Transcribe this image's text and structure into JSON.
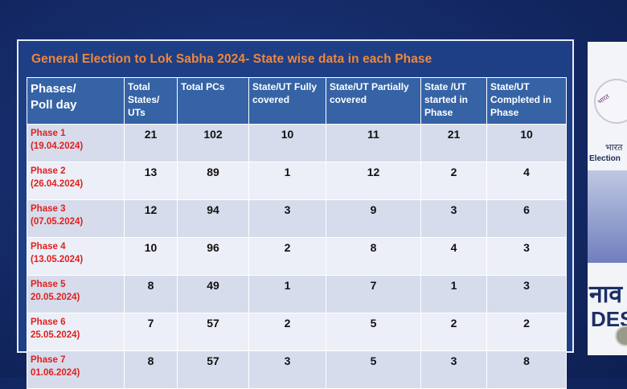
{
  "title": "General Election to Lok Sabha 2024- State wise data in each Phase",
  "headers": {
    "phase": [
      "Phases/",
      "Poll day"
    ],
    "total_states": [
      "Total",
      "States/",
      "UTs"
    ],
    "total_pcs": [
      "Total PCs"
    ],
    "fully": [
      "State/UT Fully",
      "covered"
    ],
    "partially": [
      "State/UT Partially",
      "covered"
    ],
    "started": [
      "State /UT",
      "started in",
      "Phase"
    ],
    "completed": [
      "State/UT",
      "Completed in",
      "Phase"
    ]
  },
  "rows": [
    {
      "phase": "Phase 1",
      "date": "(19.04.2024)",
      "states": "21",
      "pcs": "102",
      "fully": "10",
      "partially": "11",
      "started": "21",
      "completed": "10"
    },
    {
      "phase": "Phase 2",
      "date": "(26.04.2024)",
      "states": "13",
      "pcs": "89",
      "fully": "1",
      "partially": "12",
      "started": "2",
      "completed": "4"
    },
    {
      "phase": "Phase 3",
      "date": "(07.05.2024)",
      "states": "12",
      "pcs": "94",
      "fully": "3",
      "partially": "9",
      "started": "3",
      "completed": "6"
    },
    {
      "phase": "Phase 4",
      "date": "(13.05.2024)",
      "states": "10",
      "pcs": "96",
      "fully": "2",
      "partially": "8",
      "started": "4",
      "completed": "3"
    },
    {
      "phase": "Phase 5",
      "date": "20.05.2024)",
      "states": "8",
      "pcs": "49",
      "fully": "1",
      "partially": "7",
      "started": "1",
      "completed": "3"
    },
    {
      "phase": "Phase 6",
      "date": "25.05.2024)",
      "states": "7",
      "pcs": "57",
      "fully": "2",
      "partially": "5",
      "started": "2",
      "completed": "2"
    },
    {
      "phase": "Phase 7",
      "date": "01.06.2024)",
      "states": "8",
      "pcs": "57",
      "fully": "3",
      "partially": "5",
      "started": "3",
      "completed": "8"
    }
  ],
  "side_panel": {
    "logo_text": "भारत",
    "bharat": "भारत",
    "eci": "Election",
    "big1": "नाव",
    "big2": "DES"
  },
  "colors": {
    "title": "#f0873a",
    "header_bg": "#3563a6",
    "phase_text": "#e0201e"
  }
}
